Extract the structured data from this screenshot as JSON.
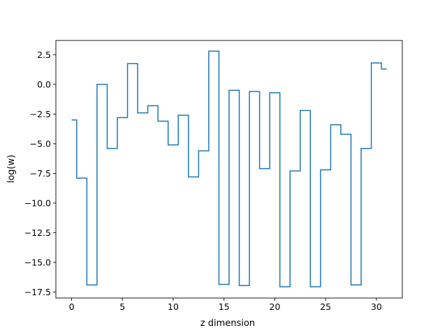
{
  "chart_data": {
    "type": "line",
    "drawstyle": "steps-mid",
    "title": "",
    "xlabel": "z dimension",
    "ylabel": "log(w)",
    "xlim": [
      -1.55,
      32.55
    ],
    "ylim": [
      -18.0,
      3.7
    ],
    "xticks": [
      0,
      5,
      10,
      15,
      20,
      25,
      30
    ],
    "yticks": [
      2.5,
      0.0,
      -2.5,
      -5.0,
      -7.5,
      -10.0,
      -12.5,
      -15.0,
      -17.5
    ],
    "ytick_labels": [
      "2.5",
      "0.0",
      "−2.5",
      "−5.0",
      "−7.5",
      "−10.0",
      "−12.5",
      "−15.0",
      "−17.5"
    ],
    "grid": false,
    "line_color": "#1f77b4",
    "series": [
      {
        "x": [
          0,
          1,
          2,
          3,
          4,
          5,
          6,
          7,
          8,
          9,
          10,
          11,
          12,
          13,
          14,
          15,
          16,
          17,
          18,
          19,
          20,
          21,
          22,
          23,
          24,
          25,
          26,
          27,
          28,
          29,
          30,
          31
        ],
        "values": [
          -3.0,
          -7.9,
          -16.9,
          0.0,
          -5.4,
          -2.8,
          1.75,
          -2.4,
          -1.8,
          -3.1,
          -5.1,
          -2.6,
          -7.8,
          -5.6,
          2.8,
          -16.85,
          -0.5,
          -16.95,
          -0.6,
          -7.1,
          -0.7,
          -17.05,
          -7.3,
          -2.2,
          -17.05,
          -7.2,
          -3.4,
          -4.2,
          -16.9,
          -5.4,
          1.8,
          1.3
        ]
      }
    ]
  }
}
